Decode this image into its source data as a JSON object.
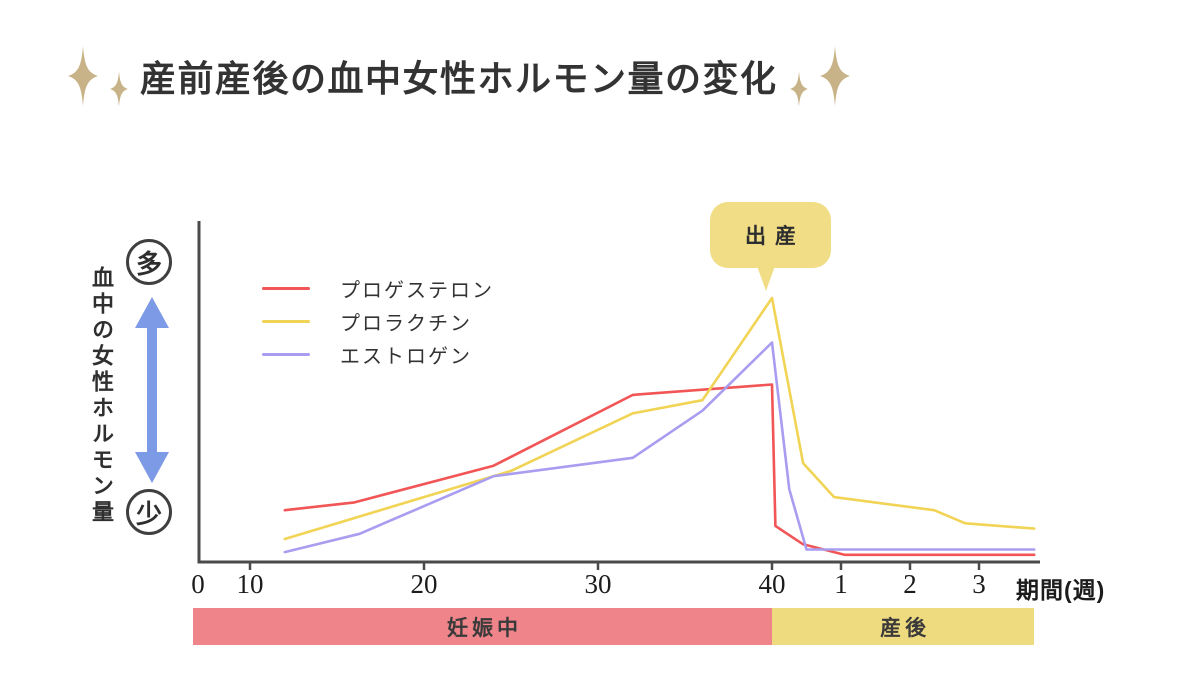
{
  "title": {
    "text": "産前産後の血中女性ホルモン量の変化",
    "sparkle_color": "#c8b287"
  },
  "y_axis": {
    "high_label": "多",
    "low_label": "少",
    "vertical_label": "血中の女性ホルモン量",
    "arrow_color": "#7d9ae6"
  },
  "callout": {
    "text": "出産",
    "color": "#f0dd86"
  },
  "chart_data": {
    "type": "line",
    "title": "産前産後の血中女性ホルモン量の変化",
    "xlabel": "期間(週)",
    "ylabel": "血中の女性ホルモン量",
    "y_qualitative": {
      "high": "多",
      "low": "少"
    },
    "ylim": [
      0,
      105
    ],
    "x_axis_note": "weeks 0-40 = pregnancy, weeks 41-43 = postpartum weeks 1-3",
    "x_ticks": [
      {
        "label": "0",
        "week": 0,
        "tick": false
      },
      {
        "label": "10",
        "week": 10,
        "tick": true
      },
      {
        "label": "20",
        "week": 20,
        "tick": true
      },
      {
        "label": "30",
        "week": 30,
        "tick": true
      },
      {
        "label": "40",
        "week": 40,
        "tick": true
      },
      {
        "label": "1",
        "week": 41,
        "tick": true
      },
      {
        "label": "2",
        "week": 42,
        "tick": true
      },
      {
        "label": "3",
        "week": 43,
        "tick": true
      }
    ],
    "series": [
      {
        "name": "プロゲステロン",
        "color": "#f25555",
        "points": [
          [
            12,
            19
          ],
          [
            16,
            22
          ],
          [
            24,
            36
          ],
          [
            32,
            63
          ],
          [
            40,
            67
          ],
          [
            40.05,
            13
          ],
          [
            40.45,
            6
          ],
          [
            41.05,
            2
          ],
          [
            43.8,
            2
          ]
        ]
      },
      {
        "name": "プロラクチン",
        "color": "#f1d456",
        "points": [
          [
            12,
            8
          ],
          [
            25,
            34
          ],
          [
            32,
            56
          ],
          [
            36,
            61
          ],
          [
            40,
            100
          ],
          [
            40.45,
            37
          ],
          [
            40.9,
            24
          ],
          [
            42.35,
            19
          ],
          [
            42.8,
            14
          ],
          [
            43.8,
            12
          ]
        ]
      },
      {
        "name": "エストロゲン",
        "color": "#a89df0",
        "points": [
          [
            12,
            3
          ],
          [
            16.3,
            10
          ],
          [
            24,
            32
          ],
          [
            32,
            39
          ],
          [
            36,
            57
          ],
          [
            40,
            83
          ],
          [
            40.25,
            27
          ],
          [
            40.5,
            4
          ],
          [
            43.8,
            4
          ]
        ]
      }
    ],
    "annotations": [
      {
        "text": "出産",
        "week": 40
      }
    ],
    "phases": [
      {
        "label": "妊娠中",
        "from_week": 0,
        "to_week": 40,
        "color": "#ef858a"
      },
      {
        "label": "産後",
        "from_week": 40,
        "to_week": 43.8,
        "color": "#eedb80"
      }
    ],
    "legend_position": "upper-left",
    "grid": false
  }
}
